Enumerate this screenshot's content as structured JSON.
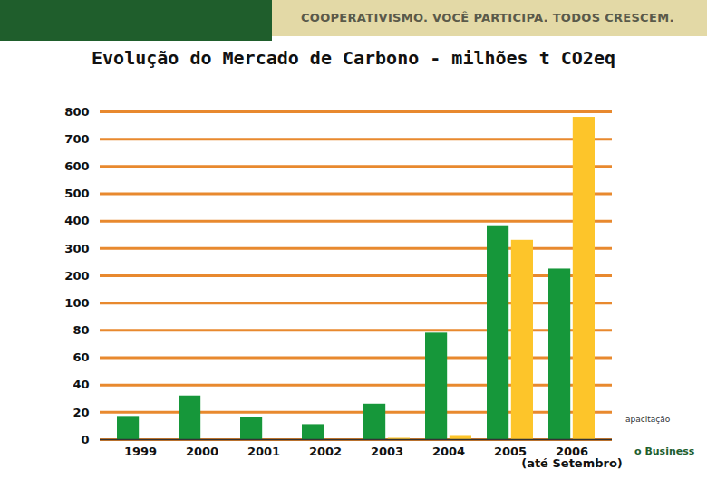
{
  "header": "COOPERATIVISMO. VOCÊ PARTICIPA. TODOS CRESCEM.",
  "side_texts": [
    "apacitação",
    "o Business"
  ],
  "chart_data": {
    "type": "bar",
    "title": "Evolução do Mercado de Carbono - milhões t CO2eq",
    "categories": [
      "1999",
      "2000",
      "2001",
      "2002",
      "2003",
      "2004",
      "2005",
      "2006\n(até Setembro)"
    ],
    "series": [
      {
        "color": "#16973a",
        "values": [
          17,
          32,
          16,
          11,
          26,
          78,
          380,
          225
        ]
      },
      {
        "color": "#fdc52a",
        "values": [
          null,
          null,
          null,
          null,
          1,
          3,
          330,
          780
        ]
      }
    ],
    "ylim": [
      0,
      800
    ],
    "yticks": [
      0,
      20,
      40,
      60,
      80,
      100,
      200,
      300,
      400,
      500,
      600,
      700,
      800
    ],
    "grid": true
  }
}
